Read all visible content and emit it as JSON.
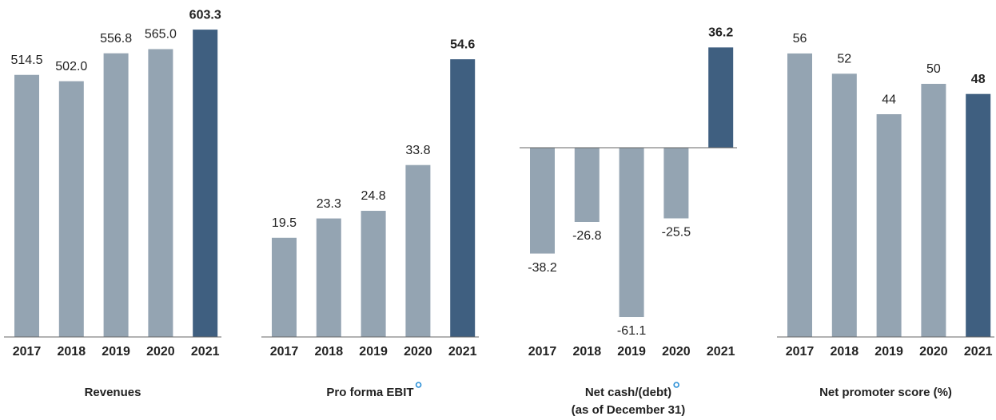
{
  "chart_data": [
    {
      "type": "bar",
      "title": "Revenues",
      "categories": [
        "2017",
        "2018",
        "2019",
        "2020",
        "2021"
      ],
      "values": [
        514.5,
        502.0,
        556.8,
        565.0,
        603.3
      ],
      "value_labels": [
        "514.5",
        "502.0",
        "556.8",
        "565.0",
        "603.3"
      ],
      "colors": [
        "#94a4b2",
        "#94a4b2",
        "#94a4b2",
        "#94a4b2",
        "#3f5f80"
      ]
    },
    {
      "type": "bar",
      "title": "Pro forma EBIT",
      "categories": [
        "2017",
        "2018",
        "2019",
        "2020",
        "2021"
      ],
      "values": [
        19.5,
        23.3,
        24.8,
        33.8,
        54.6
      ],
      "colors": [
        "#94a4b2",
        "#94a4b2",
        "#94a4b2",
        "#94a4b2",
        "#3f5f80"
      ]
    },
    {
      "type": "bar",
      "title": "Net cash/(debt)",
      "subtitle": "(as of December 31)",
      "categories": [
        "2017",
        "2018",
        "2019",
        "2020",
        "2021"
      ],
      "values": [
        -38.2,
        -26.8,
        -61.1,
        -25.5,
        36.2
      ],
      "colors": [
        "#94a4b2",
        "#94a4b2",
        "#94a4b2",
        "#94a4b2",
        "#3f5f80"
      ]
    },
    {
      "type": "bar",
      "title": "Net promoter score (%)",
      "categories": [
        "2017",
        "2018",
        "2019",
        "2020",
        "2021"
      ],
      "values": [
        56,
        52,
        44,
        50,
        48
      ],
      "colors": [
        "#94a4b2",
        "#94a4b2",
        "#94a4b2",
        "#94a4b2",
        "#3f5f80"
      ]
    }
  ]
}
